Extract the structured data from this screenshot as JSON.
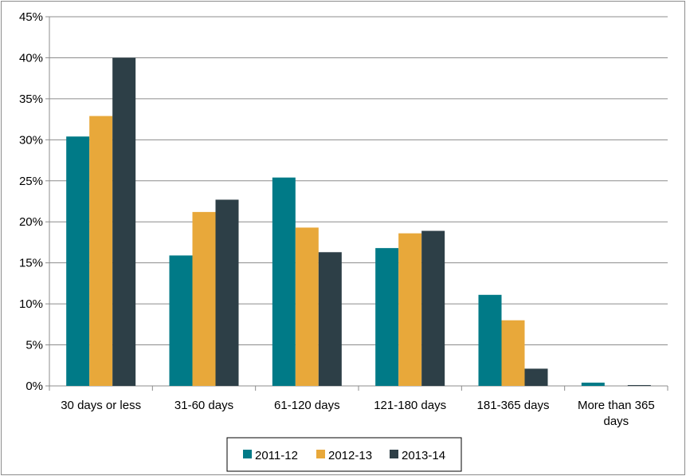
{
  "chart_data": {
    "type": "bar",
    "title": "",
    "xlabel": "",
    "ylabel": "",
    "categories": [
      "30 days or less",
      "31-60 days",
      "61-120 days",
      "121-180 days",
      "181-365 days",
      "More than 365 days"
    ],
    "series": [
      {
        "name": "2011-12",
        "color": "#007a87",
        "values": [
          30.4,
          15.9,
          25.4,
          16.8,
          11.1,
          0.4
        ]
      },
      {
        "name": "2012-13",
        "color": "#e8a83a",
        "values": [
          32.9,
          21.2,
          19.3,
          18.6,
          8.0,
          0.0
        ]
      },
      {
        "name": "2013-14",
        "color": "#2d3f47",
        "values": [
          40.0,
          22.7,
          16.3,
          18.9,
          2.1,
          0.1
        ]
      }
    ],
    "ylim": [
      0,
      45
    ],
    "yticks": [
      "0%",
      "5%",
      "10%",
      "15%",
      "20%",
      "25%",
      "30%",
      "35%",
      "40%",
      "45%"
    ],
    "grid": true,
    "legend_position": "bottom"
  }
}
